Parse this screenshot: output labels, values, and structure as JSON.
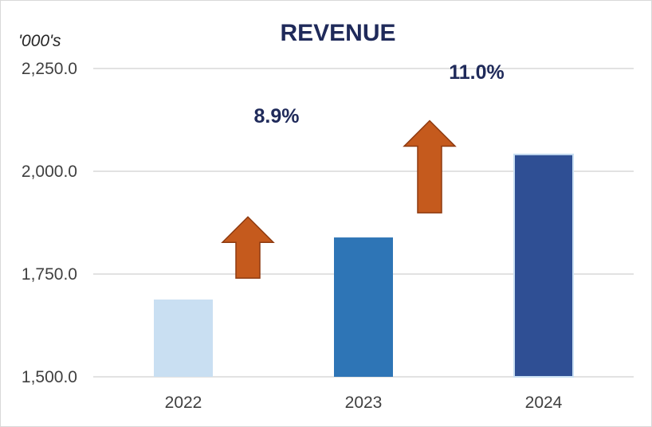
{
  "chart_data": {
    "type": "bar",
    "title": "REVENUE",
    "ylabel": "'000's",
    "xlabel": "",
    "categories": [
      "2022",
      "2023",
      "2024"
    ],
    "values": [
      1688.0,
      1839.0,
      2041.0
    ],
    "bar_colors": [
      "#c9dff2",
      "#2e75b6",
      "#2f4f94"
    ],
    "ylim": [
      1500.0,
      2250.0
    ],
    "yticks": [
      1500.0,
      1750.0,
      2000.0,
      2250.0
    ],
    "ytick_labels": [
      "1,500.0",
      "1,750.0",
      "2,000.0",
      "2,250.0"
    ],
    "grid": true,
    "gridline_color": "#d9d9d9",
    "annotations": [
      {
        "label": "8.9%",
        "between": [
          "2022",
          "2023"
        ],
        "marker": "up-arrow",
        "arrow_color": "#c55a1d"
      },
      {
        "label": "11.0%",
        "between": [
          "2023",
          "2024"
        ],
        "marker": "up-arrow",
        "arrow_color": "#c55a1d"
      }
    ]
  }
}
